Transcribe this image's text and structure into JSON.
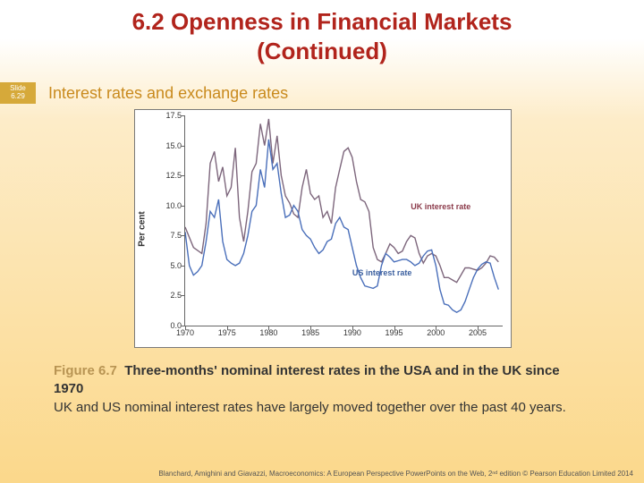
{
  "title_line1": "6.2  Openness in Financial Markets",
  "title_line2": "(Continued)",
  "badge": {
    "l1": "Slide",
    "l2": "6.29"
  },
  "subtitle": "Interest rates and exchange rates",
  "chart": {
    "type": "line",
    "ylabel": "Per cent",
    "ylim": [
      0,
      17.5
    ],
    "ytick_step": 2.5,
    "yticks": [
      "0.0",
      "2.5",
      "5.0",
      "7.5",
      "10.0",
      "12.5",
      "15.0",
      "17.5"
    ],
    "xlim": [
      1970,
      2008
    ],
    "xticks": [
      1970,
      1975,
      1980,
      1985,
      1990,
      1995,
      2000,
      2005
    ],
    "background_color": "#ffffff",
    "axis_color": "#666666",
    "series": [
      {
        "name": "uk",
        "label": "UK interest rate",
        "label_color": "#8b3a4a",
        "color": "#7d667c",
        "line_width": 1.4,
        "label_pos": {
          "year": 1997,
          "pct": 10.3
        },
        "points": [
          [
            1970,
            8.2
          ],
          [
            1971,
            6.5
          ],
          [
            1972,
            6.0
          ],
          [
            1972.5,
            8.5
          ],
          [
            1973,
            13.5
          ],
          [
            1973.5,
            14.5
          ],
          [
            1974,
            12.0
          ],
          [
            1974.5,
            13.2
          ],
          [
            1975,
            10.8
          ],
          [
            1975.5,
            11.5
          ],
          [
            1976,
            14.8
          ],
          [
            1976.5,
            9.0
          ],
          [
            1977,
            7.0
          ],
          [
            1977.5,
            9.5
          ],
          [
            1978,
            12.8
          ],
          [
            1978.5,
            13.5
          ],
          [
            1979,
            16.8
          ],
          [
            1979.5,
            15.0
          ],
          [
            1980,
            17.2
          ],
          [
            1980.5,
            13.5
          ],
          [
            1981,
            15.8
          ],
          [
            1981.5,
            12.5
          ],
          [
            1982,
            10.8
          ],
          [
            1982.5,
            10.2
          ],
          [
            1983,
            9.3
          ],
          [
            1983.5,
            9.0
          ],
          [
            1984,
            11.5
          ],
          [
            1984.5,
            13.0
          ],
          [
            1985,
            11.0
          ],
          [
            1985.5,
            10.5
          ],
          [
            1986,
            10.8
          ],
          [
            1986.5,
            9.0
          ],
          [
            1987,
            9.5
          ],
          [
            1987.5,
            8.5
          ],
          [
            1988,
            11.5
          ],
          [
            1988.5,
            13.0
          ],
          [
            1989,
            14.5
          ],
          [
            1989.5,
            14.8
          ],
          [
            1990,
            14.0
          ],
          [
            1990.5,
            12.0
          ],
          [
            1991,
            10.5
          ],
          [
            1991.5,
            10.3
          ],
          [
            1992,
            9.5
          ],
          [
            1992.5,
            6.5
          ],
          [
            1993,
            5.5
          ],
          [
            1993.5,
            5.3
          ],
          [
            1994,
            6.0
          ],
          [
            1994.5,
            6.8
          ],
          [
            1995,
            6.5
          ],
          [
            1995.5,
            6.0
          ],
          [
            1996,
            6.2
          ],
          [
            1996.5,
            7.0
          ],
          [
            1997,
            7.5
          ],
          [
            1997.5,
            7.3
          ],
          [
            1998,
            6.0
          ],
          [
            1998.5,
            5.2
          ],
          [
            1999,
            5.8
          ],
          [
            1999.5,
            6.0
          ],
          [
            2000,
            5.8
          ],
          [
            2000.5,
            5.0
          ],
          [
            2001,
            4.0
          ],
          [
            2001.5,
            4.0
          ],
          [
            2002,
            3.8
          ],
          [
            2002.5,
            3.6
          ],
          [
            2003,
            4.2
          ],
          [
            2003.5,
            4.8
          ],
          [
            2004,
            4.8
          ],
          [
            2004.5,
            4.7
          ],
          [
            2005,
            4.6
          ],
          [
            2005.5,
            4.8
          ],
          [
            2006,
            5.2
          ],
          [
            2006.5,
            5.8
          ],
          [
            2007,
            5.7
          ],
          [
            2007.5,
            5.3
          ]
        ]
      },
      {
        "name": "us",
        "label": "US interest rate",
        "label_color": "#3b5f9f",
        "color": "#4a6fba",
        "line_width": 1.4,
        "label_pos": {
          "year": 1990,
          "pct": 4.8
        },
        "points": [
          [
            1970,
            7.8
          ],
          [
            1970.5,
            5.0
          ],
          [
            1971,
            4.2
          ],
          [
            1971.5,
            4.5
          ],
          [
            1972,
            5.0
          ],
          [
            1972.5,
            7.0
          ],
          [
            1973,
            9.5
          ],
          [
            1973.5,
            9.0
          ],
          [
            1974,
            10.5
          ],
          [
            1974.5,
            7.0
          ],
          [
            1975,
            5.5
          ],
          [
            1975.5,
            5.2
          ],
          [
            1976,
            5.0
          ],
          [
            1976.5,
            5.2
          ],
          [
            1977,
            6.0
          ],
          [
            1977.5,
            7.5
          ],
          [
            1978,
            9.5
          ],
          [
            1978.5,
            10.0
          ],
          [
            1979,
            13.0
          ],
          [
            1979.5,
            11.5
          ],
          [
            1980,
            15.5
          ],
          [
            1980.5,
            13.0
          ],
          [
            1981,
            13.5
          ],
          [
            1981.5,
            11.0
          ],
          [
            1982,
            9.0
          ],
          [
            1982.5,
            9.2
          ],
          [
            1983,
            10.0
          ],
          [
            1983.5,
            9.5
          ],
          [
            1984,
            8.0
          ],
          [
            1984.5,
            7.5
          ],
          [
            1985,
            7.2
          ],
          [
            1985.5,
            6.5
          ],
          [
            1986,
            6.0
          ],
          [
            1986.5,
            6.3
          ],
          [
            1987,
            7.0
          ],
          [
            1987.5,
            7.2
          ],
          [
            1988,
            8.5
          ],
          [
            1988.5,
            9.0
          ],
          [
            1989,
            8.2
          ],
          [
            1989.5,
            8.0
          ],
          [
            1990,
            6.5
          ],
          [
            1990.5,
            5.0
          ],
          [
            1991,
            4.0
          ],
          [
            1991.5,
            3.3
          ],
          [
            1992,
            3.2
          ],
          [
            1992.5,
            3.1
          ],
          [
            1993,
            3.3
          ],
          [
            1993.5,
            5.0
          ],
          [
            1994,
            6.0
          ],
          [
            1994.5,
            5.7
          ],
          [
            1995,
            5.3
          ],
          [
            1995.5,
            5.4
          ],
          [
            1996,
            5.5
          ],
          [
            1996.5,
            5.5
          ],
          [
            1997,
            5.3
          ],
          [
            1997.5,
            5.0
          ],
          [
            1998,
            5.2
          ],
          [
            1998.5,
            5.8
          ],
          [
            1999,
            6.2
          ],
          [
            1999.5,
            6.3
          ],
          [
            2000,
            5.0
          ],
          [
            2000.5,
            3.0
          ],
          [
            2001,
            1.8
          ],
          [
            2001.5,
            1.7
          ],
          [
            2002,
            1.3
          ],
          [
            2002.5,
            1.1
          ],
          [
            2003,
            1.3
          ],
          [
            2003.5,
            2.0
          ],
          [
            2004,
            3.0
          ],
          [
            2004.5,
            4.0
          ],
          [
            2005,
            4.7
          ],
          [
            2005.5,
            5.1
          ],
          [
            2006,
            5.3
          ],
          [
            2006.5,
            5.2
          ],
          [
            2007,
            4.0
          ],
          [
            2007.5,
            3.0
          ]
        ]
      }
    ]
  },
  "caption": {
    "fignum": "Figure 6.7",
    "title": "Three-months' nominal interest rates in the USA and in the UK since 1970",
    "body": "UK and US nominal interest rates have largely moved together over the past 40 years."
  },
  "footer": "Blanchard, Amighini and Giavazzi, Macroeconomics: A European Perspective PowerPoints on the Web, 2ⁿᵈ edition © Pearson Education Limited 2014"
}
